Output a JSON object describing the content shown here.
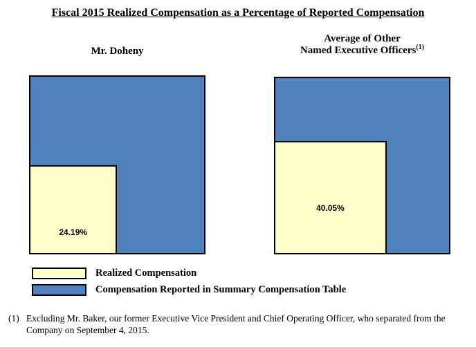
{
  "title": "Fiscal 2015 Realized Compensation as a Percentage of Reported Compensation",
  "charts": [
    {
      "header": "Mr. Doheny",
      "realized_pct": 24.19,
      "label": "24.19%"
    },
    {
      "header_line1": "Average of Other",
      "header_line2": "Named Executive Officers",
      "header_footnote_ref": "(1)",
      "realized_pct": 40.05,
      "label": "40.05%"
    }
  ],
  "legend": {
    "items": [
      {
        "label": "Realized Compensation",
        "color": "#FFFFCC"
      },
      {
        "label": "Compensation Reported in Summary Compensation Table",
        "color": "#4F81BD"
      }
    ]
  },
  "footnote": {
    "marker": "(1)",
    "text": "Excluding Mr. Baker, our former Executive Vice President and Chief Operating Officer, who separated from the Company on September 4, 2015."
  },
  "chart_data": {
    "type": "area",
    "subtype": "proportional-squares",
    "title": "Fiscal 2015 Realized Compensation as a Percentage of Reported Compensation",
    "categories": [
      "Mr. Doheny",
      "Average of Other Named Executive Officers"
    ],
    "series": [
      {
        "name": "Realized Compensation",
        "values": [
          24.19,
          40.05
        ],
        "color": "#FFFFCC"
      },
      {
        "name": "Compensation Reported in Summary Compensation Table",
        "values": [
          100,
          100
        ],
        "color": "#4F81BD"
      }
    ],
    "unit": "%",
    "data_labels": [
      "24.19%",
      "40.05%"
    ],
    "legend_position": "bottom-left",
    "note": "Inner square area equals the stated percentage of the outer reported-compensation square; side length is sqrt(pct)."
  }
}
